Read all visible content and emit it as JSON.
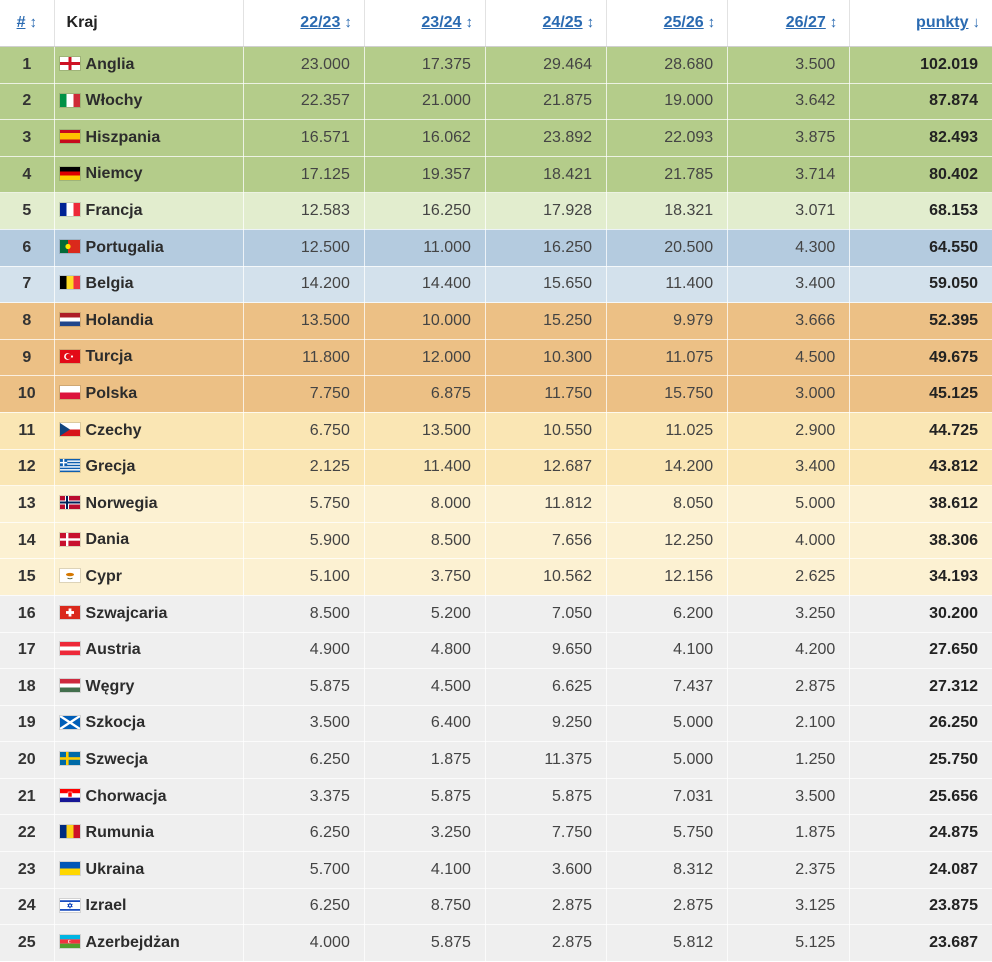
{
  "headers": {
    "rank": "#",
    "country": "Kraj",
    "seasons": [
      "22/23",
      "23/24",
      "24/25",
      "25/26",
      "26/27"
    ],
    "points": "punkty"
  },
  "sort_icons": {
    "inactive": "sort-arrows-icon",
    "active": "sort-desc-icon"
  },
  "tier_colors": {
    "tier1": "#b4cc8a",
    "tier2": "#e2edce",
    "tier3": "#b4cbdf",
    "tier4": "#d3e1ec",
    "tier5": "#ecc085",
    "tier6": "#fae6b4",
    "tier7": "#fcf1d2",
    "tier8": "#efefef"
  },
  "rows": [
    {
      "rank": "1",
      "country": "Anglia",
      "flag": "england-flag",
      "tier": "tier1",
      "s": [
        "23.000",
        "17.375",
        "29.464",
        "28.680",
        "3.500"
      ],
      "points": "102.019"
    },
    {
      "rank": "2",
      "country": "Włochy",
      "flag": "italy-flag",
      "tier": "tier1",
      "s": [
        "22.357",
        "21.000",
        "21.875",
        "19.000",
        "3.642"
      ],
      "points": "87.874"
    },
    {
      "rank": "3",
      "country": "Hiszpania",
      "flag": "spain-flag",
      "tier": "tier1",
      "s": [
        "16.571",
        "16.062",
        "23.892",
        "22.093",
        "3.875"
      ],
      "points": "82.493"
    },
    {
      "rank": "4",
      "country": "Niemcy",
      "flag": "germany-flag",
      "tier": "tier1",
      "s": [
        "17.125",
        "19.357",
        "18.421",
        "21.785",
        "3.714"
      ],
      "points": "80.402"
    },
    {
      "rank": "5",
      "country": "Francja",
      "flag": "france-flag",
      "tier": "tier2",
      "s": [
        "12.583",
        "16.250",
        "17.928",
        "18.321",
        "3.071"
      ],
      "points": "68.153"
    },
    {
      "rank": "6",
      "country": "Portugalia",
      "flag": "portugal-flag",
      "tier": "tier3",
      "s": [
        "12.500",
        "11.000",
        "16.250",
        "20.500",
        "4.300"
      ],
      "points": "64.550"
    },
    {
      "rank": "7",
      "country": "Belgia",
      "flag": "belgium-flag",
      "tier": "tier4",
      "s": [
        "14.200",
        "14.400",
        "15.650",
        "11.400",
        "3.400"
      ],
      "points": "59.050"
    },
    {
      "rank": "8",
      "country": "Holandia",
      "flag": "netherlands-flag",
      "tier": "tier5",
      "s": [
        "13.500",
        "10.000",
        "15.250",
        "9.979",
        "3.666"
      ],
      "points": "52.395"
    },
    {
      "rank": "9",
      "country": "Turcja",
      "flag": "turkey-flag",
      "tier": "tier5",
      "s": [
        "11.800",
        "12.000",
        "10.300",
        "11.075",
        "4.500"
      ],
      "points": "49.675"
    },
    {
      "rank": "10",
      "country": "Polska",
      "flag": "poland-flag",
      "tier": "tier5",
      "s": [
        "7.750",
        "6.875",
        "11.750",
        "15.750",
        "3.000"
      ],
      "points": "45.125"
    },
    {
      "rank": "11",
      "country": "Czechy",
      "flag": "czechia-flag",
      "tier": "tier6",
      "s": [
        "6.750",
        "13.500",
        "10.550",
        "11.025",
        "2.900"
      ],
      "points": "44.725"
    },
    {
      "rank": "12",
      "country": "Grecja",
      "flag": "greece-flag",
      "tier": "tier6",
      "s": [
        "2.125",
        "11.400",
        "12.687",
        "14.200",
        "3.400"
      ],
      "points": "43.812"
    },
    {
      "rank": "13",
      "country": "Norwegia",
      "flag": "norway-flag",
      "tier": "tier7",
      "s": [
        "5.750",
        "8.000",
        "11.812",
        "8.050",
        "5.000"
      ],
      "points": "38.612"
    },
    {
      "rank": "14",
      "country": "Dania",
      "flag": "denmark-flag",
      "tier": "tier7",
      "s": [
        "5.900",
        "8.500",
        "7.656",
        "12.250",
        "4.000"
      ],
      "points": "38.306"
    },
    {
      "rank": "15",
      "country": "Cypr",
      "flag": "cyprus-flag",
      "tier": "tier7",
      "s": [
        "5.100",
        "3.750",
        "10.562",
        "12.156",
        "2.625"
      ],
      "points": "34.193"
    },
    {
      "rank": "16",
      "country": "Szwajcaria",
      "flag": "switzerland-flag",
      "tier": "tier8",
      "s": [
        "8.500",
        "5.200",
        "7.050",
        "6.200",
        "3.250"
      ],
      "points": "30.200"
    },
    {
      "rank": "17",
      "country": "Austria",
      "flag": "austria-flag",
      "tier": "tier8",
      "s": [
        "4.900",
        "4.800",
        "9.650",
        "4.100",
        "4.200"
      ],
      "points": "27.650"
    },
    {
      "rank": "18",
      "country": "Węgry",
      "flag": "hungary-flag",
      "tier": "tier8",
      "s": [
        "5.875",
        "4.500",
        "6.625",
        "7.437",
        "2.875"
      ],
      "points": "27.312"
    },
    {
      "rank": "19",
      "country": "Szkocja",
      "flag": "scotland-flag",
      "tier": "tier8",
      "s": [
        "3.500",
        "6.400",
        "9.250",
        "5.000",
        "2.100"
      ],
      "points": "26.250"
    },
    {
      "rank": "20",
      "country": "Szwecja",
      "flag": "sweden-flag",
      "tier": "tier8",
      "s": [
        "6.250",
        "1.875",
        "11.375",
        "5.000",
        "1.250"
      ],
      "points": "25.750"
    },
    {
      "rank": "21",
      "country": "Chorwacja",
      "flag": "croatia-flag",
      "tier": "tier8",
      "s": [
        "3.375",
        "5.875",
        "5.875",
        "7.031",
        "3.500"
      ],
      "points": "25.656"
    },
    {
      "rank": "22",
      "country": "Rumunia",
      "flag": "romania-flag",
      "tier": "tier8",
      "s": [
        "6.250",
        "3.250",
        "7.750",
        "5.750",
        "1.875"
      ],
      "points": "24.875"
    },
    {
      "rank": "23",
      "country": "Ukraina",
      "flag": "ukraine-flag",
      "tier": "tier8",
      "s": [
        "5.700",
        "4.100",
        "3.600",
        "8.312",
        "2.375"
      ],
      "points": "24.087"
    },
    {
      "rank": "24",
      "country": "Izrael",
      "flag": "israel-flag",
      "tier": "tier8",
      "s": [
        "6.250",
        "8.750",
        "2.875",
        "2.875",
        "3.125"
      ],
      "points": "23.875"
    },
    {
      "rank": "25",
      "country": "Azerbejdżan",
      "flag": "azerbaijan-flag",
      "tier": "tier8",
      "s": [
        "4.000",
        "5.875",
        "2.875",
        "5.812",
        "5.125"
      ],
      "points": "23.687"
    }
  ]
}
